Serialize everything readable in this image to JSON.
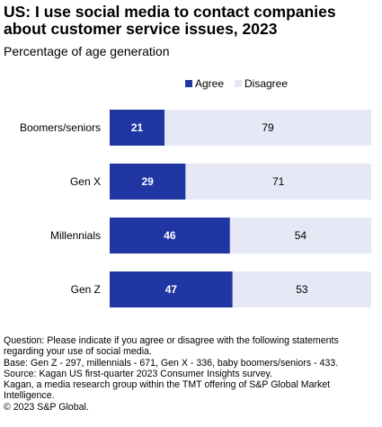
{
  "title": "US: I use social media to contact companies about customer service issues, 2023",
  "subtitle": "Percentage of age generation",
  "colors": {
    "agree": "#1f36a3",
    "disagree": "#e6e8f5",
    "agree_label": "#ffffff",
    "disagree_label": "#000000"
  },
  "chart_data": {
    "type": "bar",
    "orientation": "horizontal",
    "stacked": true,
    "categories": [
      "Boomers/seniors",
      "Gen X",
      "Millennials",
      "Gen Z"
    ],
    "series": [
      {
        "name": "Agree",
        "values": [
          21,
          29,
          46,
          47
        ]
      },
      {
        "name": "Disagree",
        "values": [
          79,
          71,
          54,
          53
        ]
      }
    ],
    "xlim": [
      0,
      100
    ],
    "grid": false,
    "legend_position": "top-right"
  },
  "footer": [
    "Question: Please indicate if you agree or disagree with the following statements regarding your use of social media.",
    "Base: Gen Z - 297, millennials - 671, Gen X - 336, baby boomers/seniors - 433.",
    "Source: Kagan US first-quarter 2023 Consumer Insights survey.",
    "Kagan, a media research group within the TMT offering of S&P Global Market Intelligence.",
    "© 2023 S&P Global."
  ]
}
